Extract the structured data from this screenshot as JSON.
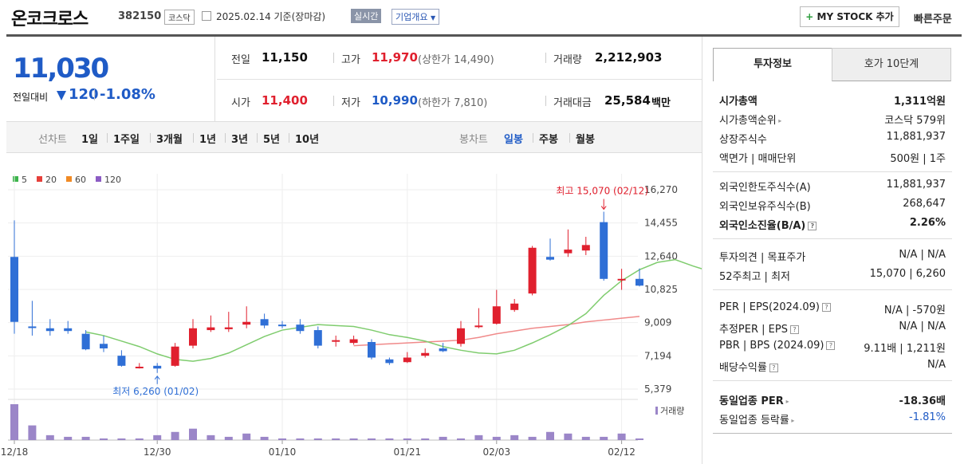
{
  "header": {
    "name": "온코크로스",
    "code": "382150",
    "market": "코스닥",
    "date": "2025.02.14 기준(장마감)",
    "realtime": "실시간",
    "overview": "기업개요",
    "mystock": "MY STOCK 추가",
    "quick_order": "빠른주문"
  },
  "price": {
    "current": "11,030",
    "change_label": "전일대비",
    "change": "120",
    "change_pct": "-1.08%"
  },
  "quote": {
    "prev_label": "전일",
    "prev": "11,150",
    "high_label": "고가",
    "high": "11,970",
    "upper_limit": "(상한가 14,490)",
    "volume_label": "거래량",
    "volume": "2,212,903",
    "open_label": "시가",
    "open": "11,400",
    "low_label": "저가",
    "low": "10,990",
    "lower_limit": "(하한가 7,810)",
    "amount_label": "거래대금",
    "amount": "25,584",
    "amount_unit": "백만"
  },
  "periods": {
    "line_label": "선차트",
    "line_items": [
      "1일",
      "1주일",
      "3개월",
      "1년",
      "3년",
      "5년",
      "10년"
    ],
    "candle_label": "봉차트",
    "candle_items": [
      "일봉",
      "주봉",
      "월봉"
    ],
    "selected": "일봉"
  },
  "chart_data": {
    "type": "candlestick",
    "legend": [
      {
        "name": "5",
        "color": "#3cb44b"
      },
      {
        "name": "20",
        "color": "#e6403a"
      },
      {
        "name": "60",
        "color": "#f08a24"
      },
      {
        "name": "120",
        "color": "#8c5cc4"
      }
    ],
    "y_ticks": [
      16270,
      14455,
      12640,
      10825,
      9009,
      7194,
      5379
    ],
    "y_tick_labels": [
      "16,270",
      "14,455",
      "12,640",
      "10,825",
      "9,009",
      "7,194",
      "5,379"
    ],
    "ylim": [
      5379,
      16270
    ],
    "x_tick_labels": [
      "12/18",
      "12/30",
      "01/10",
      "01/21",
      "02/03",
      "02/12"
    ],
    "x_tick_index": [
      0,
      8,
      15,
      22,
      27,
      34
    ],
    "candles": [
      {
        "o": 12600,
        "c": 9050,
        "h": 14600,
        "l": 8400
      },
      {
        "o": 8800,
        "c": 8750,
        "h": 10200,
        "l": 8300
      },
      {
        "o": 8700,
        "c": 8550,
        "h": 9200,
        "l": 8300
      },
      {
        "o": 8700,
        "c": 8550,
        "h": 9100,
        "l": 8400
      },
      {
        "o": 8400,
        "c": 7550,
        "h": 8600,
        "l": 7500
      },
      {
        "o": 7850,
        "c": 7600,
        "h": 8300,
        "l": 7400
      },
      {
        "o": 7200,
        "c": 6650,
        "h": 7500,
        "l": 6600
      },
      {
        "o": 6550,
        "c": 6600,
        "h": 6800,
        "l": 6500
      },
      {
        "o": 6650,
        "c": 6500,
        "h": 6800,
        "l": 6260
      },
      {
        "o": 6650,
        "c": 7700,
        "h": 7900,
        "l": 6600
      },
      {
        "o": 7750,
        "c": 8700,
        "h": 9200,
        "l": 7600
      },
      {
        "o": 8600,
        "c": 8750,
        "h": 9400,
        "l": 8500
      },
      {
        "o": 8650,
        "c": 8750,
        "h": 9600,
        "l": 8500
      },
      {
        "o": 8900,
        "c": 9050,
        "h": 9900,
        "l": 8700
      },
      {
        "o": 9200,
        "c": 8850,
        "h": 9500,
        "l": 8700
      },
      {
        "o": 8900,
        "c": 8850,
        "h": 9100,
        "l": 8700
      },
      {
        "o": 8900,
        "c": 8550,
        "h": 9200,
        "l": 8400
      },
      {
        "o": 8600,
        "c": 7750,
        "h": 8800,
        "l": 7600
      },
      {
        "o": 8050,
        "c": 8050,
        "h": 8300,
        "l": 7700
      },
      {
        "o": 7900,
        "c": 8100,
        "h": 8300,
        "l": 7800
      },
      {
        "o": 7950,
        "c": 7100,
        "h": 8100,
        "l": 7000
      },
      {
        "o": 7000,
        "c": 6800,
        "h": 7100,
        "l": 6700
      },
      {
        "o": 6850,
        "c": 7100,
        "h": 7400,
        "l": 6800
      },
      {
        "o": 7200,
        "c": 7350,
        "h": 7600,
        "l": 7100
      },
      {
        "o": 7600,
        "c": 7450,
        "h": 7900,
        "l": 7400
      },
      {
        "o": 7850,
        "c": 8700,
        "h": 9100,
        "l": 7700
      },
      {
        "o": 8800,
        "c": 8850,
        "h": 9800,
        "l": 8700
      },
      {
        "o": 8950,
        "c": 9900,
        "h": 10800,
        "l": 8900
      },
      {
        "o": 9700,
        "c": 10050,
        "h": 10300,
        "l": 9600
      },
      {
        "o": 10600,
        "c": 13100,
        "h": 13200,
        "l": 10500
      },
      {
        "o": 12600,
        "c": 12450,
        "h": 13600,
        "l": 12400
      },
      {
        "o": 12800,
        "c": 13000,
        "h": 14100,
        "l": 12600
      },
      {
        "o": 12950,
        "c": 13250,
        "h": 13700,
        "l": 12700
      },
      {
        "o": 14500,
        "c": 11400,
        "h": 15070,
        "l": 11300
      },
      {
        "o": 11400,
        "c": 11400,
        "h": 11950,
        "l": 10800
      },
      {
        "o": 11400,
        "c": 11030,
        "h": 11970,
        "l": 10990
      }
    ],
    "ma5": [
      8500,
      8300,
      8000,
      7700,
      7300,
      7000,
      6900,
      7050,
      7350,
      7800,
      8250,
      8600,
      8750,
      8900,
      8850,
      8800,
      8600,
      8350,
      8200,
      8000,
      7700,
      7500,
      7350,
      7300,
      7500,
      7900,
      8350,
      8850,
      9500,
      10500,
      11300,
      11900,
      12300,
      12450,
      12100,
      11800
    ],
    "ma20": [
      7750,
      7800,
      7850,
      7900,
      7950,
      8000,
      8050,
      8200,
      8400,
      8550,
      8700,
      8800,
      8900,
      9050,
      9150,
      9250,
      9350
    ],
    "ma20_start": 19,
    "volume": [
      22,
      9,
      3,
      2,
      2,
      1,
      1,
      1,
      3,
      5,
      7,
      3,
      2,
      4,
      2,
      1,
      1,
      1,
      1,
      1,
      1,
      1,
      1,
      1,
      2,
      1,
      3,
      2,
      3,
      2,
      5,
      4,
      2,
      2,
      4,
      1
    ],
    "volume_label": "거래량",
    "annotations": {
      "high": "최고 15,070 (02/12)",
      "low": "최저 6,260 (01/02)"
    }
  },
  "panel": {
    "tab_info": "투자정보",
    "tab_orderbook": "호가 10단계",
    "g1": [
      {
        "l": "시가총액",
        "r": "1,311억원",
        "bold": true
      },
      {
        "l": "시가총액순위",
        "r": "코스닥 579위",
        "arrow": true
      },
      {
        "l": "상장주식수",
        "r": "11,881,937"
      },
      {
        "l": "액면가 | 매매단위",
        "r": "500원 | 1주"
      }
    ],
    "g2": [
      {
        "l": "외국인한도주식수(A)",
        "r": "11,881,937"
      },
      {
        "l": "외국인보유주식수(B)",
        "r": "268,647"
      },
      {
        "l": "외국인소진율(B/A)",
        "r": "2.26%",
        "bold": true,
        "q": true
      }
    ],
    "g3": [
      {
        "l": "투자의견 | 목표주가",
        "r": "N/A | N/A"
      },
      {
        "l": "52주최고 | 최저",
        "r": "15,070 | 6,260"
      }
    ],
    "g4": [
      {
        "l": "PER | EPS(2024.09)",
        "r": "N/A | -570원",
        "q": true
      },
      {
        "l": "추정PER | EPS",
        "r": "N/A | N/A",
        "q": true
      },
      {
        "l": "PBR | BPS (2024.09)",
        "r": "9.11배 | 1,211원",
        "q": true
      },
      {
        "l": "배당수익률",
        "r": "N/A",
        "q": true
      }
    ],
    "g5": [
      {
        "l": "동일업종 PER",
        "r": "-18.36배",
        "bold": true,
        "arrow": true
      },
      {
        "l": "동일업종 등락률",
        "r": "-1.81%",
        "arrow": true,
        "blue": true
      }
    ]
  }
}
